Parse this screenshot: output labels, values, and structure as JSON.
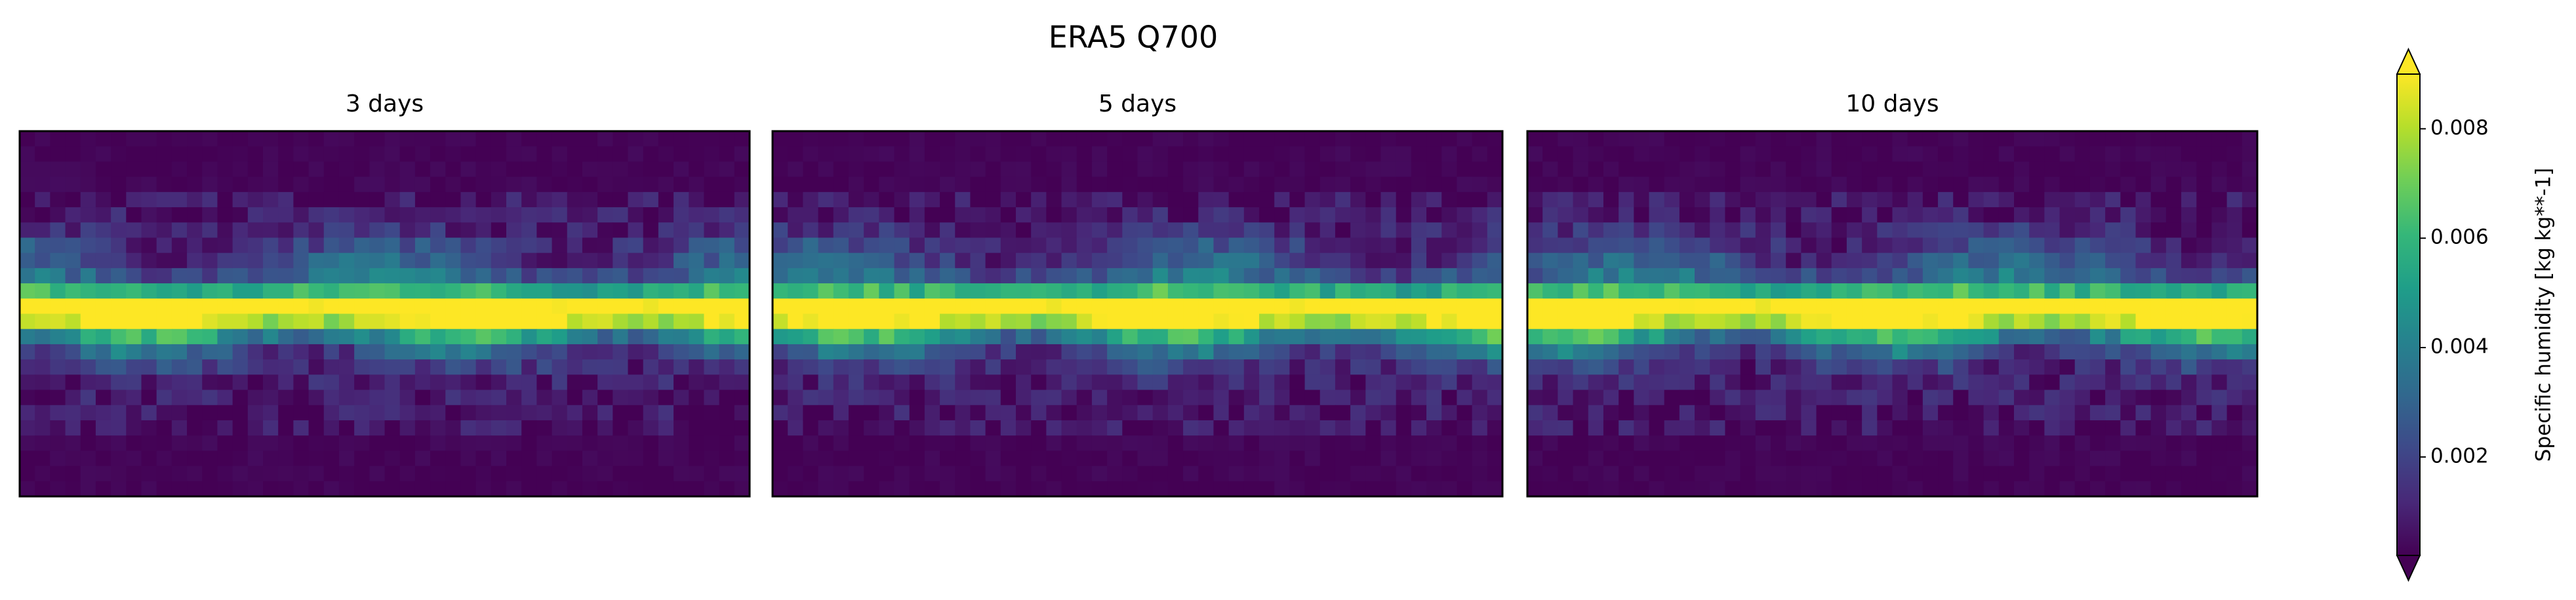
{
  "chart_data": {
    "type": "map",
    "title": "ERA5 Q700",
    "panels": [
      {
        "title": "3 days"
      },
      {
        "title": "5 days"
      },
      {
        "title": "10 days"
      }
    ],
    "colorbar": {
      "label": "Specific humidity [kg kg**-1]",
      "lim": [
        0.0002,
        0.009
      ],
      "ticks": [
        0.002,
        0.004,
        0.006,
        0.008
      ],
      "colormap": "viridis",
      "extend": "both"
    }
  }
}
